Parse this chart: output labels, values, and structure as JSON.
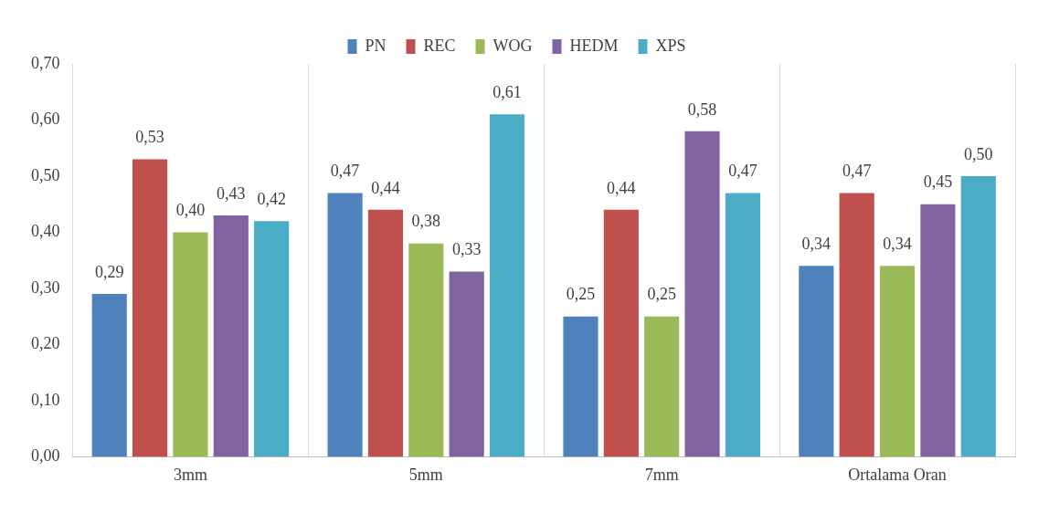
{
  "chart_data": {
    "type": "bar",
    "categories": [
      "3mm",
      "5mm",
      "7mm",
      "Ortalama Oran"
    ],
    "series": [
      {
        "name": "PN",
        "color": "#4f81bd",
        "values": [
          0.29,
          0.47,
          0.25,
          0.34
        ],
        "value_labels": [
          "0,29",
          "0,47",
          "0,25",
          "0,34"
        ]
      },
      {
        "name": "REC",
        "color": "#c0504d",
        "values": [
          0.53,
          0.44,
          0.44,
          0.47
        ],
        "value_labels": [
          "0,53",
          "0,44",
          "0,44",
          "0,47"
        ]
      },
      {
        "name": "WOG",
        "color": "#9bbb59",
        "values": [
          0.4,
          0.38,
          0.25,
          0.34
        ],
        "value_labels": [
          "0,40",
          "0,38",
          "0,25",
          "0,34"
        ]
      },
      {
        "name": "HEDM",
        "color": "#8064a2",
        "values": [
          0.43,
          0.33,
          0.58,
          0.45
        ],
        "value_labels": [
          "0,43",
          "0,33",
          "0,58",
          "0,45"
        ]
      },
      {
        "name": "XPS",
        "color": "#4bacc6",
        "values": [
          0.42,
          0.61,
          0.47,
          0.5
        ],
        "value_labels": [
          "0,42",
          "0,61",
          "0,47",
          "0,50"
        ]
      }
    ],
    "ylim": [
      0,
      0.7
    ],
    "yticks": [
      {
        "value": 0,
        "label": "0,00"
      },
      {
        "value": 0.1,
        "label": "0,10"
      },
      {
        "value": 0.2,
        "label": "0,20"
      },
      {
        "value": 0.3,
        "label": "0,30"
      },
      {
        "value": 0.4,
        "label": "0,40"
      },
      {
        "value": 0.5,
        "label": "0,50"
      },
      {
        "value": 0.6,
        "label": "0,60"
      },
      {
        "value": 0.7,
        "label": "0,70"
      }
    ],
    "grid": "x",
    "legend": "top"
  }
}
